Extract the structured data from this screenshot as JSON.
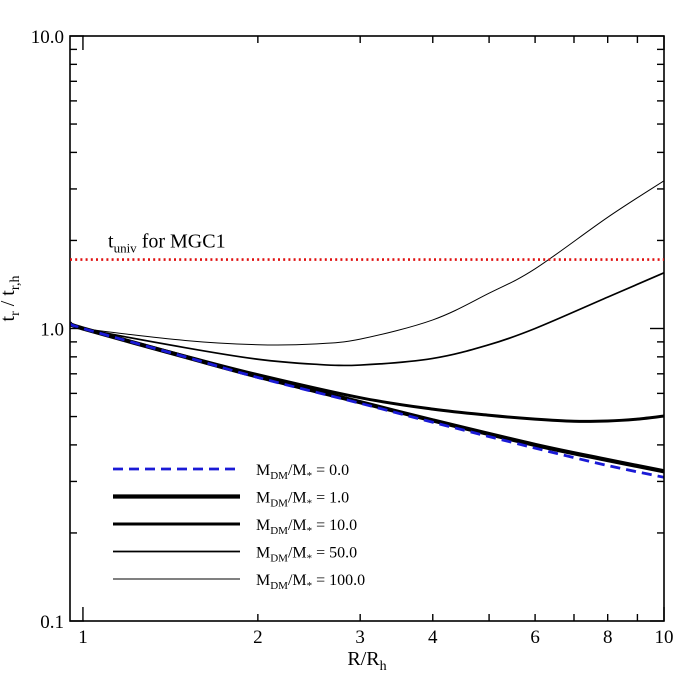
{
  "chart_data": {
    "type": "line",
    "xlabel": "R/R",
    "xlabel_sub": "h",
    "ylabel": "t",
    "ylabel_sub": "r",
    "ylabel_sep": " / t",
    "ylabel_sub2": "r,h",
    "x_scale": "log",
    "y_scale": "log",
    "xlim": [
      0.95,
      10
    ],
    "ylim": [
      0.1,
      10
    ],
    "x_tick_labels": [
      "1",
      "2",
      "3",
      "4",
      "6",
      "8",
      "10"
    ],
    "x_ticks": [
      1,
      2,
      3,
      4,
      6,
      8,
      10
    ],
    "y_tick_labels": [
      "0.1",
      "1.0",
      "10.0"
    ],
    "y_ticks": [
      0.1,
      1.0,
      10.0
    ],
    "grid": false,
    "legend_position": "bottom-left",
    "annotation": {
      "text_main": "t",
      "text_sub": "univ",
      "text_rest": " for MGC1",
      "value": 1.72,
      "color": "#e01010",
      "style": "dotted"
    },
    "series": [
      {
        "name": "0.0",
        "label_main": "M",
        "label_sub1": "DM",
        "label_mid": "/M",
        "label_sub2": "*",
        "label_tail": " = 0.0",
        "color": "#1a1ad6",
        "style": "dashed",
        "weight": "medium",
        "x": [
          0.95,
          1,
          1.5,
          2,
          3,
          4,
          6,
          8,
          10
        ],
        "y": [
          1.04,
          1.0,
          0.8,
          0.68,
          0.555,
          0.478,
          0.39,
          0.34,
          0.31
        ]
      },
      {
        "name": "1.0",
        "label_main": "M",
        "label_sub1": "DM",
        "label_mid": "/M",
        "label_sub2": "*",
        "label_tail": " = 1.0",
        "color": "#000000",
        "style": "solid",
        "weight": "heavy",
        "x": [
          0.95,
          1,
          1.5,
          2,
          3,
          4,
          6,
          8,
          10
        ],
        "y": [
          1.04,
          1.0,
          0.8,
          0.685,
          0.56,
          0.485,
          0.4,
          0.355,
          0.325
        ]
      },
      {
        "name": "10.0",
        "label_main": "M",
        "label_sub1": "DM",
        "label_mid": "/M",
        "label_sub2": "*",
        "label_tail": " = 10.0",
        "color": "#000000",
        "style": "solid",
        "weight": "bold",
        "x": [
          0.95,
          1,
          1.5,
          2,
          3,
          4,
          5,
          6,
          7,
          8,
          9,
          10
        ],
        "y": [
          1.04,
          1.0,
          0.805,
          0.695,
          0.58,
          0.53,
          0.505,
          0.49,
          0.482,
          0.483,
          0.49,
          0.502
        ]
      },
      {
        "name": "50.0",
        "label_main": "M",
        "label_sub1": "DM",
        "label_mid": "/M",
        "label_sub2": "*",
        "label_tail": " = 50.0",
        "color": "#000000",
        "style": "solid",
        "weight": "normal",
        "x": [
          0.95,
          1,
          1.5,
          2,
          2.5,
          3,
          4,
          5,
          6,
          8,
          10
        ],
        "y": [
          1.04,
          1.0,
          0.86,
          0.785,
          0.755,
          0.75,
          0.79,
          0.88,
          1.0,
          1.28,
          1.55
        ]
      },
      {
        "name": "100.0",
        "label_main": "M",
        "label_sub1": "DM",
        "label_mid": "/M",
        "label_sub2": "*",
        "label_tail": " = 100.0",
        "color": "#000000",
        "style": "solid",
        "weight": "thin",
        "x": [
          0.95,
          1,
          1.5,
          2,
          2.5,
          3,
          4,
          5,
          6,
          8,
          10
        ],
        "y": [
          1.04,
          1.0,
          0.91,
          0.88,
          0.885,
          0.92,
          1.07,
          1.32,
          1.6,
          2.4,
          3.2
        ]
      }
    ]
  }
}
